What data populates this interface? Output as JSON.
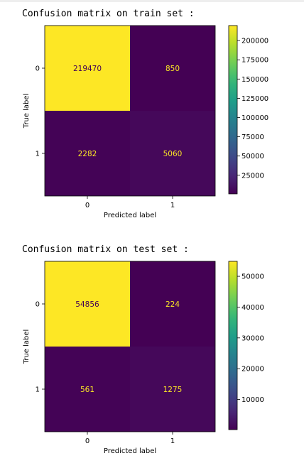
{
  "colors": {
    "low": "#440154",
    "high": "#fde725",
    "text_on_low": "#fde725",
    "text_on_high": "#440154"
  },
  "chart_data": [
    {
      "type": "heatmap",
      "title": "Confusion matrix on train set :",
      "xlabel": "Predicted label",
      "ylabel": "True label",
      "x_categories": [
        "0",
        "1"
      ],
      "y_categories": [
        "0",
        "1"
      ],
      "values": [
        [
          219470,
          850
        ],
        [
          2282,
          5060
        ]
      ],
      "colorbar": {
        "ticks": [
          "200000",
          "175000",
          "150000",
          "125000",
          "100000",
          "75000",
          "50000",
          "25000"
        ]
      }
    },
    {
      "type": "heatmap",
      "title": "Confusion matrix on test set :",
      "xlabel": "Predicted label",
      "ylabel": "True label",
      "x_categories": [
        "0",
        "1"
      ],
      "y_categories": [
        "0",
        "1"
      ],
      "values": [
        [
          54856,
          224
        ],
        [
          561,
          1275
        ]
      ],
      "colorbar": {
        "ticks": [
          "50000",
          "40000",
          "30000",
          "20000",
          "10000"
        ]
      }
    }
  ]
}
